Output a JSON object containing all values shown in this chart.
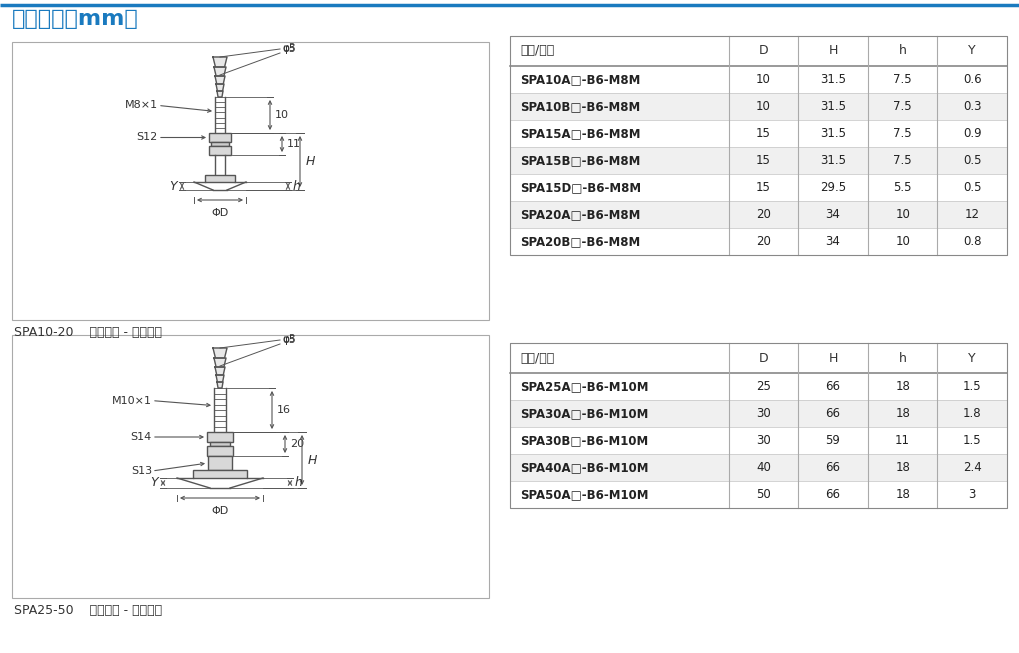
{
  "title": "尺寸规格（mm）",
  "title_color": "#1a7abf",
  "top_line_color": "#1a7abf",
  "background_color": "#ffffff",
  "table1_header": [
    "型号/尺寸",
    "D",
    "H",
    "h",
    "Y"
  ],
  "table1_rows": [
    [
      "SPA10A□-B6-M8M",
      "10",
      "31.5",
      "7.5",
      "0.6"
    ],
    [
      "SPA10B□-B6-M8M",
      "10",
      "31.5",
      "7.5",
      "0.3"
    ],
    [
      "SPA15A□-B6-M8M",
      "15",
      "31.5",
      "7.5",
      "0.9"
    ],
    [
      "SPA15B□-B6-M8M",
      "15",
      "31.5",
      "7.5",
      "0.5"
    ],
    [
      "SPA15D□-B6-M8M",
      "15",
      "29.5",
      "5.5",
      "0.5"
    ],
    [
      "SPA20A□-B6-M8M",
      "20",
      "34",
      "10",
      "12"
    ],
    [
      "SPA20B□-B6-M8M",
      "20",
      "34",
      "10",
      "0.8"
    ]
  ],
  "table2_header": [
    "型号/尺寸",
    "D",
    "H",
    "h",
    "Y"
  ],
  "table2_rows": [
    [
      "SPA25A□-B6-M10M",
      "25",
      "66",
      "18",
      "1.5"
    ],
    [
      "SPA30A□-B6-M10M",
      "30",
      "66",
      "18",
      "1.8"
    ],
    [
      "SPA30B□-B6-M10M",
      "30",
      "59",
      "11",
      "1.5"
    ],
    [
      "SPA40A□-B6-M10M",
      "40",
      "66",
      "18",
      "2.4"
    ],
    [
      "SPA50A□-B6-M10M",
      "50",
      "66",
      "18",
      "3"
    ]
  ],
  "caption1": "SPA10-20    垂直方向 - 宝塔接头",
  "caption2": "SPA25-50    垂直方向 - 宝塔接头",
  "diagram_line_color": "#555555",
  "row_alt_color": "#f0f0f0",
  "row_white_color": "#ffffff"
}
